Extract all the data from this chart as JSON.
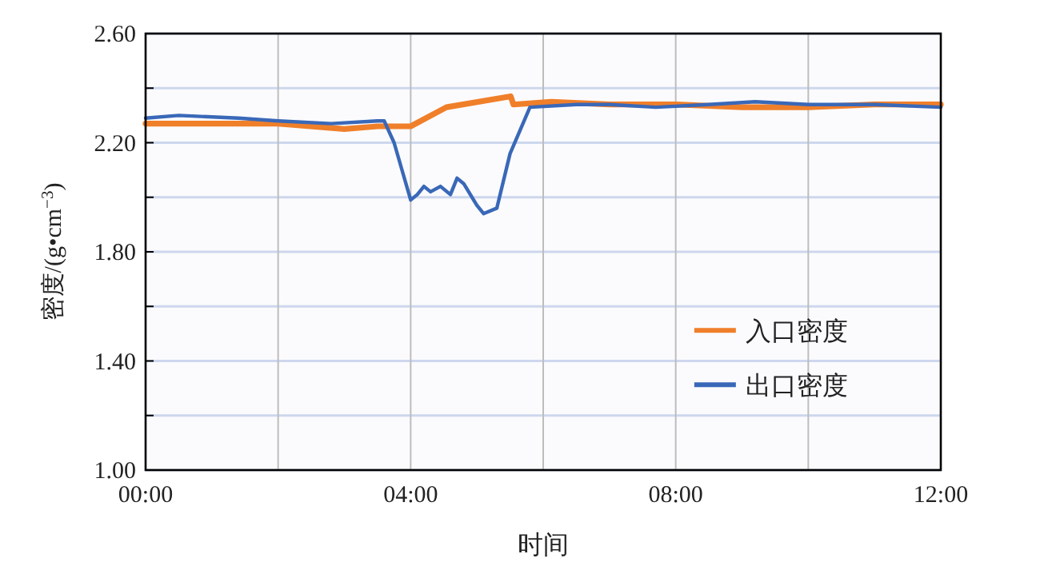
{
  "chart_data": {
    "type": "line",
    "xlabel": "时间",
    "ylabel": "密度/(g•cm$^{−3}$)",
    "xlim": [
      0,
      12
    ],
    "ylim": [
      1.0,
      2.6
    ],
    "xticks": [
      {
        "value": 0,
        "label": "00:00"
      },
      {
        "value": 2,
        "label": null
      },
      {
        "value": 4,
        "label": "04:00"
      },
      {
        "value": 6,
        "label": null
      },
      {
        "value": 8,
        "label": "08:00"
      },
      {
        "value": 10,
        "label": null
      },
      {
        "value": 12,
        "label": "12:00"
      }
    ],
    "yticks": [
      {
        "value": 1.0,
        "label": "1.00"
      },
      {
        "value": 1.2,
        "label": null
      },
      {
        "value": 1.4,
        "label": "1.40"
      },
      {
        "value": 1.6,
        "label": null
      },
      {
        "value": 1.8,
        "label": "1.80"
      },
      {
        "value": 2.0,
        "label": null
      },
      {
        "value": 2.2,
        "label": "2.20"
      },
      {
        "value": 2.4,
        "label": null
      },
      {
        "value": 2.6,
        "label": "2.60"
      }
    ],
    "grid": true,
    "legend": "right",
    "marker": "none",
    "line_style": "solid",
    "series": [
      {
        "name": "入口密度",
        "color": "#f07f2a",
        "x": [
          0,
          1,
          2,
          3,
          3.5,
          3.9,
          4.0,
          4.54,
          5.51,
          5.55,
          6.12,
          7,
          8,
          9,
          10,
          11,
          11.5,
          12
        ],
        "values": [
          2.27,
          2.27,
          2.27,
          2.25,
          2.26,
          2.26,
          2.26,
          2.33,
          2.37,
          2.34,
          2.35,
          2.34,
          2.34,
          2.33,
          2.33,
          2.34,
          2.34,
          2.34
        ]
      },
      {
        "name": "出口密度",
        "color": "#3a68b8",
        "x": [
          0,
          0.5,
          1.4,
          2,
          2.8,
          3.5,
          3.6,
          3.75,
          4.0,
          4.1,
          4.2,
          4.3,
          4.45,
          4.6,
          4.7,
          4.8,
          5.0,
          5.1,
          5.3,
          5.5,
          5.8,
          6.5,
          7,
          7.7,
          8.5,
          9.2,
          10,
          11,
          12
        ],
        "values": [
          2.29,
          2.3,
          2.29,
          2.28,
          2.27,
          2.28,
          2.28,
          2.2,
          1.99,
          2.01,
          2.04,
          2.02,
          2.04,
          2.01,
          2.07,
          2.05,
          1.97,
          1.94,
          1.96,
          2.16,
          2.33,
          2.34,
          2.34,
          2.33,
          2.34,
          2.35,
          2.34,
          2.34,
          2.33
        ]
      }
    ]
  }
}
